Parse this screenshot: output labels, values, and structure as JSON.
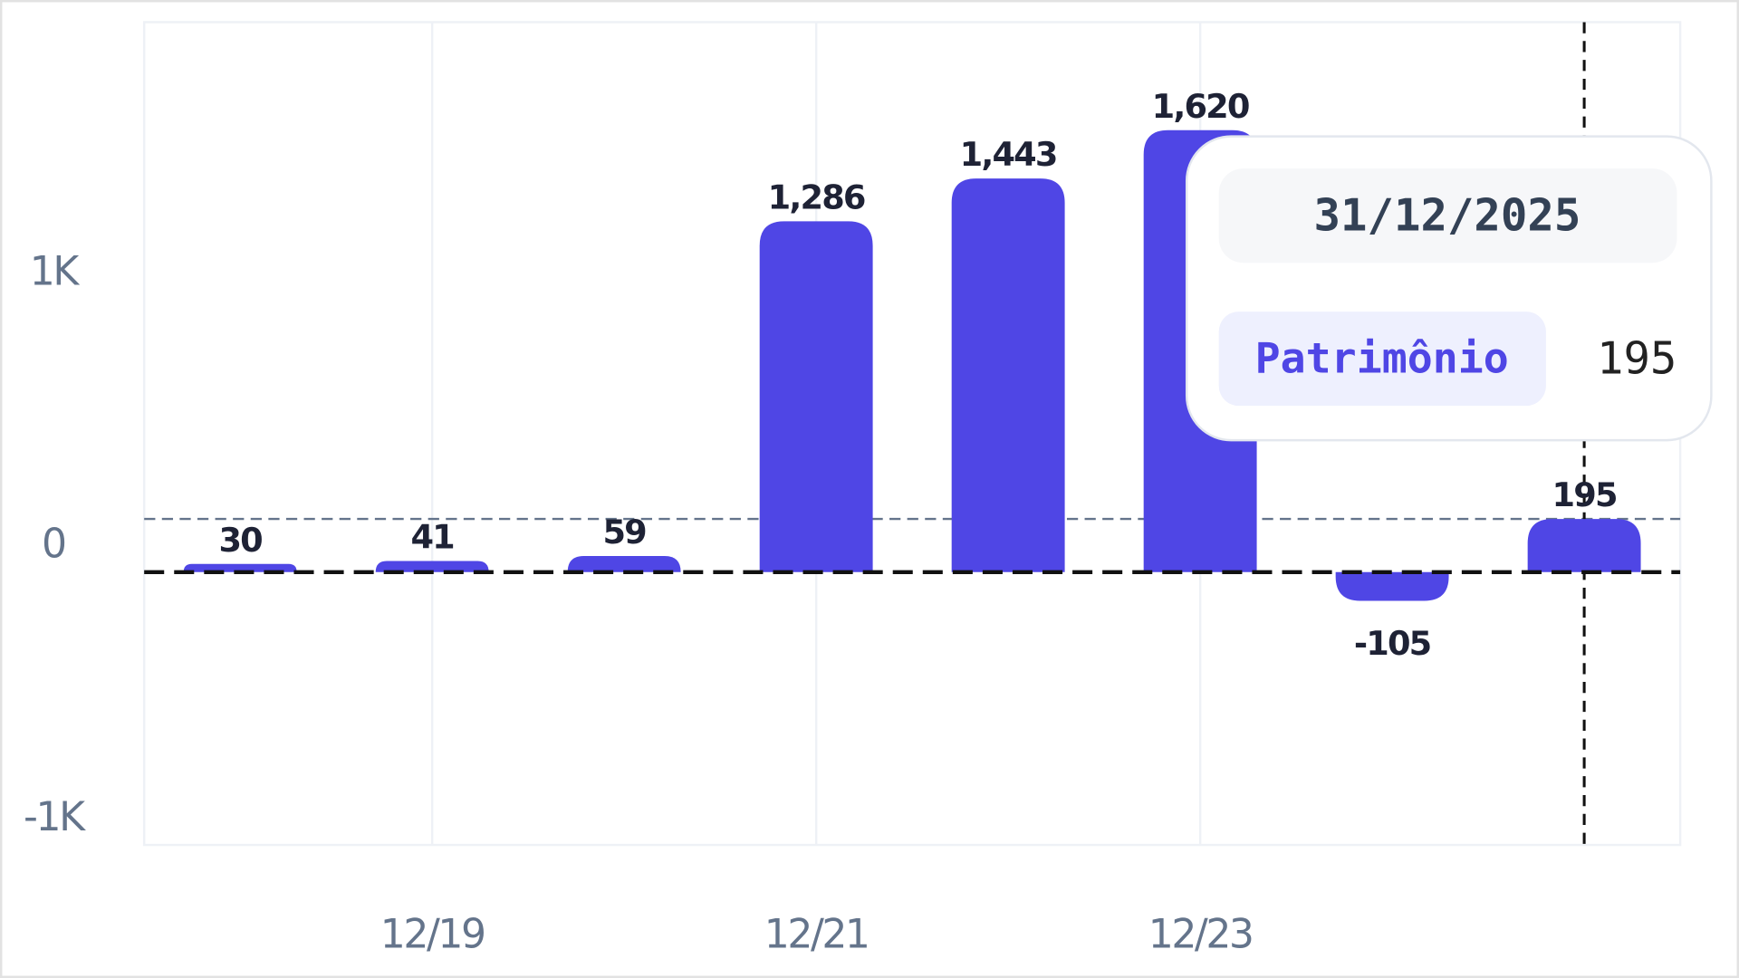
{
  "chart_data": {
    "type": "bar",
    "categories": [
      null,
      "12/19",
      null,
      "12/21",
      null,
      "12/23",
      null,
      null
    ],
    "series": [
      {
        "name": "Patrimônio",
        "color": "#4f46e5",
        "values": [
          30,
          41,
          59,
          1286,
          1443,
          1620,
          -105,
          195
        ],
        "value_labels": [
          "30",
          "41",
          "59",
          "1,286",
          "1,443",
          "1,620",
          "-105",
          "195"
        ]
      }
    ],
    "ylim": [
      -1000,
      2016
    ],
    "yticks": [
      {
        "value": 1000,
        "label": "1K"
      },
      0,
      {
        "value": -1000,
        "label": "-1K"
      }
    ],
    "tooltip_title": "31/12/2025"
  }
}
